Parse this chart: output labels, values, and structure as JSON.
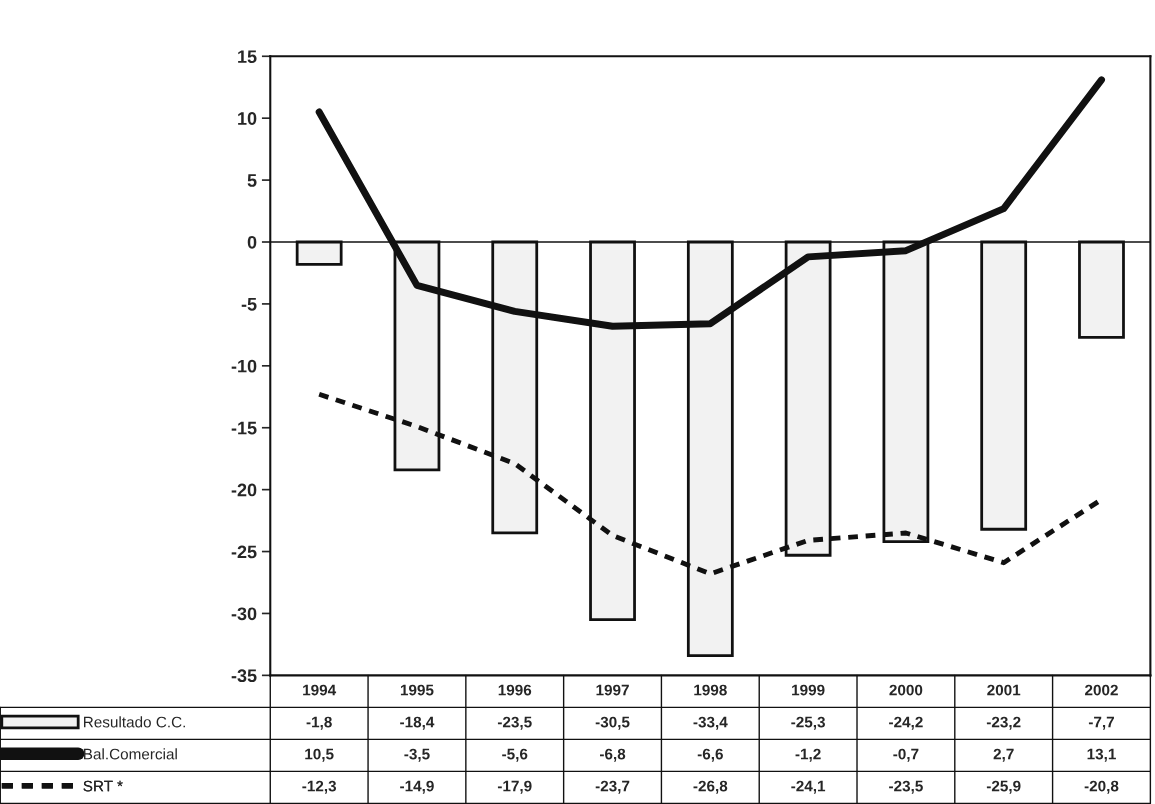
{
  "chart_data": {
    "type": "bar",
    "categories": [
      "1994",
      "1995",
      "1996",
      "1997",
      "1998",
      "1999",
      "2000",
      "2001",
      "2002"
    ],
    "series": [
      {
        "name": "Resultado C.C.",
        "color": "#f2f2f2",
        "values": [
          -1.8,
          -18.4,
          -23.5,
          -30.5,
          -33.4,
          -25.3,
          -24.2,
          -23.2,
          -7.7
        ],
        "value_labels": [
          "-1,8",
          "-18,4",
          "-23,5",
          "-30,5",
          "-33,4",
          "-25,3",
          "-24,2",
          "-23,2",
          "-7,7"
        ]
      },
      {
        "name": "Bal.Comercial",
        "type": "line",
        "color": "#111111",
        "line_style": "solid",
        "values": [
          10.5,
          -3.5,
          -5.6,
          -6.8,
          -6.6,
          -1.2,
          -0.7,
          2.7,
          13.1
        ],
        "value_labels": [
          "10,5",
          "-3,5",
          "-5,6",
          "-6,8",
          "-6,6",
          "-1,2",
          "-0,7",
          "2,7",
          "13,1"
        ]
      },
      {
        "name": "SRT *",
        "type": "line",
        "color": "#111111",
        "line_style": "dashed",
        "values": [
          -12.3,
          -14.9,
          -17.9,
          -23.7,
          -26.8,
          -24.1,
          -23.5,
          -25.9,
          -20.8
        ],
        "value_labels": [
          "-12,3",
          "-14,9",
          "-17,9",
          "-23,7",
          "-26,8",
          "-24,1",
          "-23,5",
          "-25,9",
          "-20,8"
        ]
      }
    ],
    "ylim": [
      -35,
      15
    ],
    "yticks": [
      -35,
      -30,
      -25,
      -20,
      -15,
      -10,
      -5,
      0,
      5,
      10,
      15
    ],
    "ref_lines": [
      {
        "axis": "y",
        "value": 0,
        "color": "#111111"
      }
    ],
    "legend": "bottom",
    "grid": false,
    "marker": "none"
  }
}
